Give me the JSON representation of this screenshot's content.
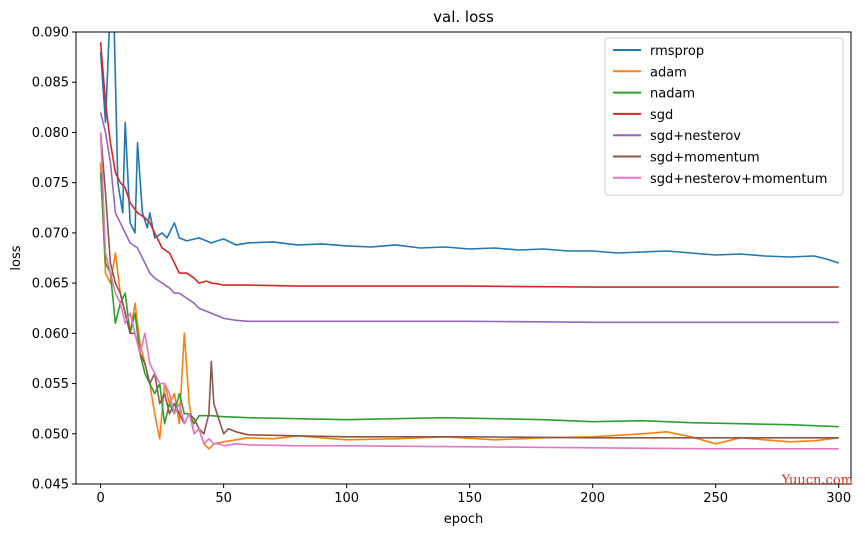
{
  "watermark": "Yuucn.com",
  "chart_data": {
    "type": "line",
    "title": "val. loss",
    "xlabel": "epoch",
    "ylabel": "loss",
    "xlim": [
      -10,
      305
    ],
    "ylim": [
      0.045,
      0.09
    ],
    "xticks": [
      0,
      50,
      100,
      150,
      200,
      250,
      300
    ],
    "yticks": [
      0.045,
      0.05,
      0.055,
      0.06,
      0.065,
      0.07,
      0.075,
      0.08,
      0.085,
      0.09
    ],
    "grid": false,
    "legend_position": "top-right",
    "series": [
      {
        "name": "rmsprop",
        "color": "#1f77b4",
        "x": [
          0,
          2,
          4,
          5,
          7,
          9,
          10,
          12,
          14,
          15,
          17,
          19,
          20,
          22,
          25,
          27,
          30,
          32,
          35,
          40,
          45,
          50,
          55,
          60,
          70,
          80,
          90,
          100,
          110,
          120,
          130,
          140,
          150,
          160,
          170,
          180,
          190,
          200,
          210,
          220,
          230,
          240,
          250,
          260,
          270,
          280,
          290,
          295,
          300
        ],
        "y": [
          0.088,
          0.081,
          0.093,
          0.096,
          0.075,
          0.072,
          0.081,
          0.071,
          0.07,
          0.079,
          0.072,
          0.0705,
          0.072,
          0.0695,
          0.07,
          0.0695,
          0.071,
          0.0695,
          0.0692,
          0.0695,
          0.069,
          0.0694,
          0.0688,
          0.069,
          0.0691,
          0.0688,
          0.0689,
          0.0687,
          0.0686,
          0.0688,
          0.0685,
          0.0686,
          0.0684,
          0.0685,
          0.0683,
          0.0684,
          0.0682,
          0.0682,
          0.068,
          0.0681,
          0.0682,
          0.068,
          0.0678,
          0.0679,
          0.0677,
          0.0676,
          0.0677,
          0.0674,
          0.067
        ]
      },
      {
        "name": "adam",
        "color": "#ff7f0e",
        "x": [
          0,
          2,
          4,
          6,
          8,
          10,
          12,
          14,
          16,
          18,
          20,
          22,
          24,
          26,
          28,
          30,
          32,
          34,
          36,
          38,
          40,
          42,
          44,
          46,
          50,
          60,
          70,
          80,
          100,
          120,
          140,
          160,
          180,
          200,
          220,
          230,
          240,
          250,
          260,
          270,
          280,
          290,
          300
        ],
        "y": [
          0.077,
          0.066,
          0.065,
          0.068,
          0.064,
          0.062,
          0.06,
          0.063,
          0.059,
          0.057,
          0.055,
          0.052,
          0.0495,
          0.055,
          0.053,
          0.054,
          0.051,
          0.06,
          0.053,
          0.05,
          0.0505,
          0.049,
          0.0485,
          0.049,
          0.0492,
          0.0496,
          0.0495,
          0.0498,
          0.0494,
          0.0495,
          0.0497,
          0.0494,
          0.0496,
          0.0497,
          0.05,
          0.0502,
          0.0497,
          0.049,
          0.0496,
          0.0494,
          0.0492,
          0.0493,
          0.0496
        ]
      },
      {
        "name": "nadam",
        "color": "#2ca02c",
        "x": [
          0,
          2,
          4,
          6,
          8,
          10,
          12,
          14,
          16,
          18,
          20,
          22,
          24,
          26,
          28,
          30,
          32,
          34,
          36,
          38,
          40,
          45,
          50,
          60,
          80,
          100,
          120,
          140,
          160,
          180,
          200,
          220,
          240,
          260,
          280,
          300
        ],
        "y": [
          0.076,
          0.067,
          0.066,
          0.061,
          0.063,
          0.064,
          0.06,
          0.062,
          0.058,
          0.056,
          0.055,
          0.054,
          0.055,
          0.051,
          0.053,
          0.052,
          0.054,
          0.052,
          0.052,
          0.051,
          0.0518,
          0.0518,
          0.0517,
          0.0516,
          0.0515,
          0.0514,
          0.0515,
          0.0516,
          0.0515,
          0.0514,
          0.0512,
          0.0513,
          0.0511,
          0.051,
          0.0509,
          0.0507
        ]
      },
      {
        "name": "sgd",
        "color": "#d62728",
        "x": [
          0,
          2,
          4,
          6,
          8,
          10,
          12,
          15,
          18,
          20,
          22,
          25,
          28,
          30,
          32,
          35,
          38,
          40,
          43,
          45,
          48,
          50,
          60,
          80,
          100,
          150,
          200,
          250,
          300
        ],
        "y": [
          0.089,
          0.083,
          0.079,
          0.076,
          0.075,
          0.0745,
          0.073,
          0.072,
          0.0715,
          0.071,
          0.07,
          0.0685,
          0.068,
          0.067,
          0.066,
          0.066,
          0.0655,
          0.065,
          0.0652,
          0.065,
          0.0649,
          0.0648,
          0.0648,
          0.0647,
          0.0647,
          0.0647,
          0.0646,
          0.0646,
          0.0646
        ]
      },
      {
        "name": "sgd+nesterov",
        "color": "#9467bd",
        "x": [
          0,
          2,
          4,
          6,
          8,
          10,
          12,
          15,
          18,
          20,
          22,
          25,
          28,
          30,
          32,
          35,
          38,
          40,
          43,
          45,
          48,
          50,
          55,
          60,
          80,
          100,
          150,
          200,
          250,
          300
        ],
        "y": [
          0.082,
          0.08,
          0.077,
          0.072,
          0.071,
          0.07,
          0.069,
          0.0685,
          0.067,
          0.066,
          0.0655,
          0.065,
          0.0645,
          0.064,
          0.064,
          0.0635,
          0.063,
          0.0625,
          0.0622,
          0.062,
          0.0617,
          0.0615,
          0.0613,
          0.0612,
          0.0612,
          0.0612,
          0.0612,
          0.0611,
          0.0611,
          0.0611
        ]
      },
      {
        "name": "sgd+momentum",
        "color": "#8c564b",
        "x": [
          0,
          2,
          4,
          6,
          8,
          10,
          12,
          14,
          16,
          18,
          20,
          22,
          24,
          26,
          28,
          30,
          32,
          34,
          36,
          38,
          40,
          42,
          44,
          45,
          46,
          48,
          50,
          52,
          55,
          60,
          80,
          100,
          150,
          200,
          250,
          300
        ],
        "y": [
          0.08,
          0.074,
          0.067,
          0.065,
          0.064,
          0.062,
          0.06,
          0.06,
          0.058,
          0.057,
          0.055,
          0.056,
          0.053,
          0.054,
          0.052,
          0.053,
          0.052,
          0.051,
          0.052,
          0.0515,
          0.0505,
          0.05,
          0.052,
          0.0572,
          0.053,
          0.0515,
          0.05,
          0.0505,
          0.0502,
          0.0499,
          0.0498,
          0.0497,
          0.0497,
          0.0496,
          0.0496,
          0.0496
        ]
      },
      {
        "name": "sgd+nesterov+momentum",
        "color": "#e377c2",
        "x": [
          0,
          2,
          4,
          6,
          8,
          10,
          12,
          14,
          16,
          18,
          20,
          22,
          24,
          26,
          28,
          30,
          32,
          34,
          36,
          38,
          40,
          42,
          44,
          46,
          48,
          50,
          55,
          60,
          80,
          100,
          150,
          200,
          250,
          300
        ],
        "y": [
          0.08,
          0.068,
          0.066,
          0.064,
          0.063,
          0.061,
          0.062,
          0.06,
          0.058,
          0.06,
          0.057,
          0.056,
          0.055,
          0.055,
          0.054,
          0.052,
          0.053,
          0.051,
          0.052,
          0.05,
          0.0505,
          0.049,
          0.0495,
          0.049,
          0.049,
          0.0488,
          0.049,
          0.0489,
          0.0488,
          0.0488,
          0.0487,
          0.0486,
          0.0485,
          0.0485
        ]
      }
    ]
  }
}
